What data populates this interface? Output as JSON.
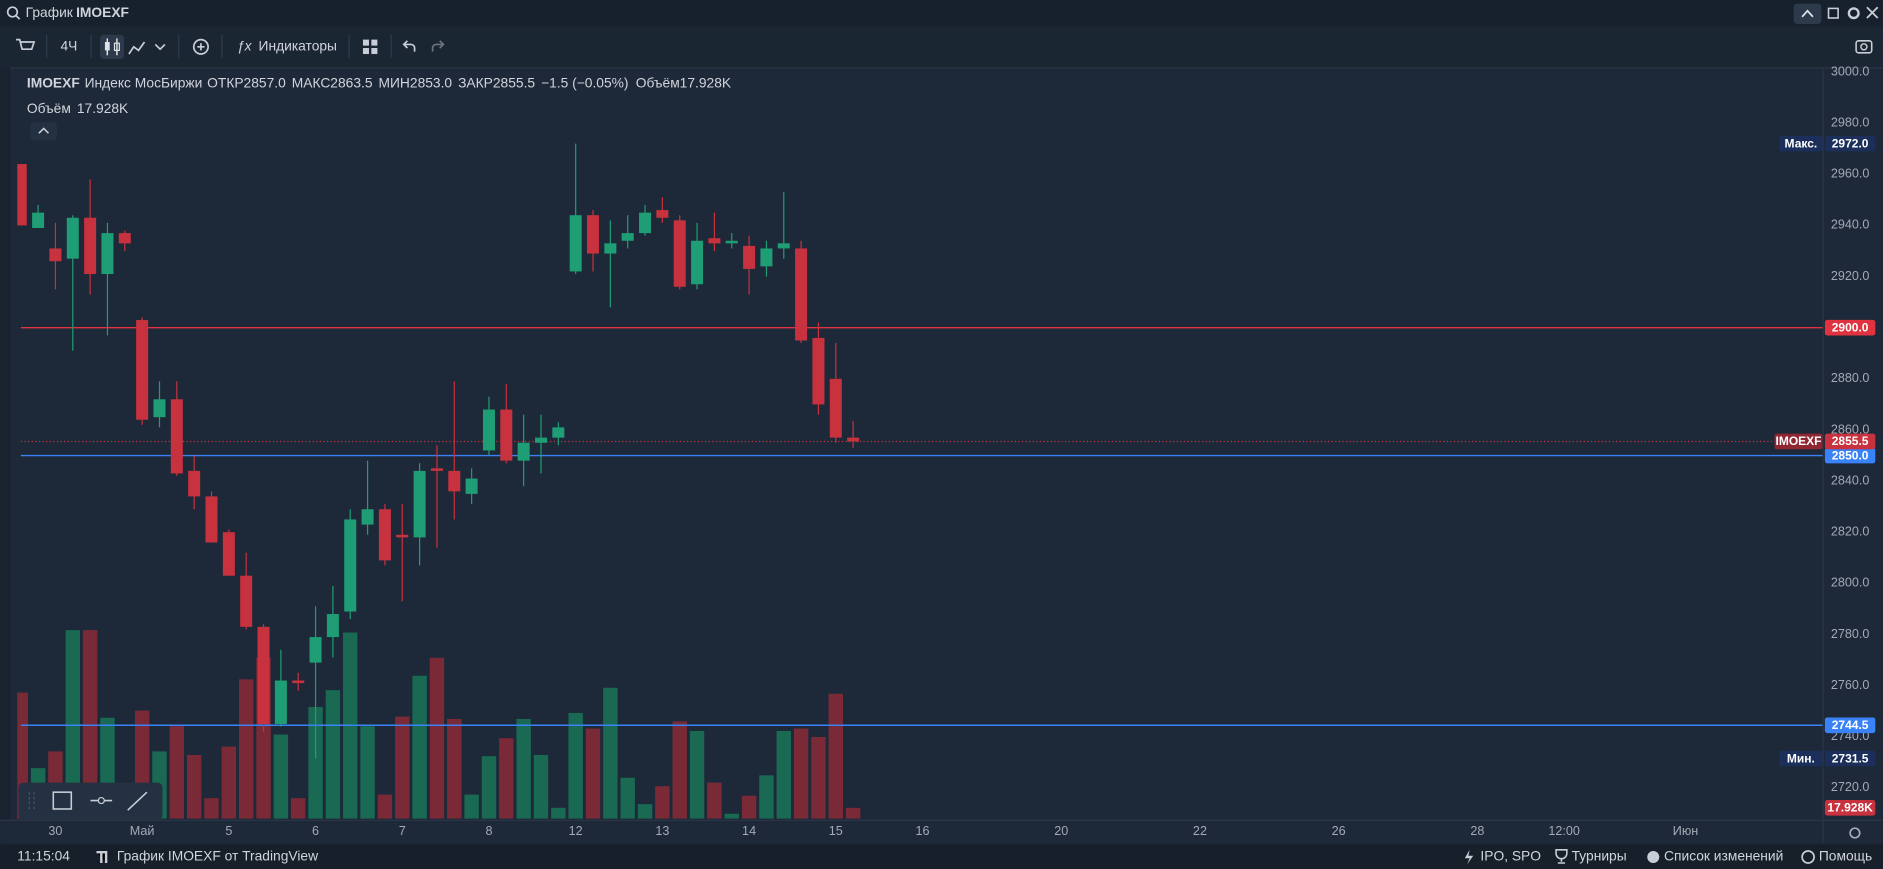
{
  "window": {
    "search_label": "График",
    "symbol": "IMOEXF"
  },
  "toolbar": {
    "interval": "4Ч",
    "indicators": "Индикаторы"
  },
  "legend": {
    "symbol": "IMOEXF",
    "name": "Индекс МосБиржи",
    "open_label": "ОТКР",
    "open": "2857.0",
    "high_label": "МАКС",
    "high": "2863.5",
    "low_label": "МИН",
    "low": "2853.0",
    "close_label": "ЗАКР",
    "close": "2855.5",
    "change": "−1.5 (−0.05%)",
    "volume_label": "Объём",
    "volume": "17.928K",
    "volume_pane_label": "Объём",
    "volume_pane_value": "17.928K"
  },
  "chart_data": {
    "type": "candlestick",
    "xlim": [
      -0.2,
      103.9
    ],
    "xticks": [
      {
        "value": 2,
        "label": "30"
      },
      {
        "value": 7,
        "label": "Май"
      },
      {
        "value": 12,
        "label": "5"
      },
      {
        "value": 17,
        "label": "6"
      },
      {
        "value": 22,
        "label": "7"
      },
      {
        "value": 27,
        "label": "8"
      },
      {
        "value": 32,
        "label": "12"
      },
      {
        "value": 37,
        "label": "13"
      },
      {
        "value": 42,
        "label": "14"
      },
      {
        "value": 47,
        "label": "15"
      },
      {
        "value": 52,
        "label": "16"
      },
      {
        "value": 60,
        "label": "20"
      },
      {
        "value": 68,
        "label": "22"
      },
      {
        "value": 76,
        "label": "26"
      },
      {
        "value": 84,
        "label": "28"
      },
      {
        "value": 89,
        "label": "12:00"
      },
      {
        "value": 96,
        "label": "Июн"
      }
    ],
    "ylim": [
      2708,
      3004.7
    ],
    "yticks": [
      {
        "value": 2720,
        "label": "2720.0"
      },
      {
        "value": 2740,
        "label": "2740.0"
      },
      {
        "value": 2760,
        "label": "2760.0"
      },
      {
        "value": 2780,
        "label": "2780.0"
      },
      {
        "value": 2800,
        "label": "2800.0"
      },
      {
        "value": 2820,
        "label": "2820.0"
      },
      {
        "value": 2840,
        "label": "2840.0"
      },
      {
        "value": 2860,
        "label": "2860.0"
      },
      {
        "value": 2880,
        "label": "2880.0"
      },
      {
        "value": 2900,
        "label": "2900.0"
      },
      {
        "value": 2920,
        "label": "2920.0"
      },
      {
        "value": 2940,
        "label": "2940.0"
      },
      {
        "value": 2960,
        "label": "2960.0"
      },
      {
        "value": 2980,
        "label": "2980.0"
      },
      {
        "value": 3000,
        "label": "3000.0"
      }
    ],
    "series": [
      {
        "name": "IMOEXF",
        "open": [
          2964,
          2939,
          2931,
          2927,
          2943,
          2921,
          2937,
          2903,
          2865,
          2872,
          2844,
          2834,
          2820,
          2803,
          2783,
          2745,
          2762,
          2769,
          2779,
          2789,
          2823,
          2829,
          2819,
          2818,
          2845,
          2844,
          2835,
          2852,
          2868,
          2848,
          2855,
          2857,
          2922,
          2944,
          2929,
          2934,
          2937,
          2946,
          2942,
          2917,
          2935,
          2933,
          2932,
          2924,
          2931,
          2931,
          2896,
          2880,
          2857
        ],
        "high": [
          2964,
          2948,
          2941,
          2944,
          2958,
          2941,
          2938,
          2904,
          2879,
          2879,
          2850,
          2836,
          2821,
          2812,
          2784,
          2774,
          2765,
          2791,
          2799,
          2829,
          2848,
          2831,
          2831,
          2847,
          2854,
          2879,
          2845,
          2873,
          2878,
          2866,
          2866,
          2863,
          2972,
          2946,
          2942,
          2944,
          2948,
          2951,
          2944,
          2941,
          2945,
          2937,
          2936,
          2934,
          2953,
          2934,
          2902,
          2894,
          2863.5
        ],
        "low": [
          2940,
          2939,
          2915,
          2891,
          2913,
          2897,
          2930,
          2862,
          2861,
          2842,
          2829,
          2816,
          2803,
          2782,
          2742,
          2744,
          2758,
          2731.5,
          2771,
          2786,
          2819,
          2807,
          2793,
          2807,
          2814,
          2825,
          2831,
          2850,
          2847,
          2838,
          2843,
          2854,
          2921,
          2922,
          2908,
          2931,
          2936,
          2941,
          2915,
          2915,
          2930,
          2931,
          2913,
          2920,
          2927,
          2894,
          2866,
          2855,
          2853
        ],
        "close": [
          2940,
          2945,
          2926,
          2943,
          2921,
          2937,
          2933,
          2864,
          2872,
          2843,
          2834,
          2816,
          2803,
          2783,
          2745,
          2762,
          2761,
          2779,
          2788,
          2825,
          2829,
          2809,
          2818,
          2844,
          2844,
          2836,
          2841,
          2868,
          2848,
          2855,
          2857,
          2861,
          2944,
          2929,
          2933,
          2937,
          2945,
          2943,
          2916,
          2934,
          2933,
          2934,
          2923,
          2931,
          2933,
          2895,
          2870,
          2857,
          2855.5
        ],
        "volume": [
          210000,
          84000,
          112000,
          314000,
          314000,
          168000,
          44000,
          180000,
          112000,
          154000,
          106000,
          34000,
          120000,
          232000,
          268000,
          140000,
          34000,
          186000,
          214000,
          310000,
          154000,
          40000,
          170000,
          238000,
          268000,
          166000,
          40000,
          104000,
          134000,
          166000,
          106000,
          18000,
          176000,
          150000,
          218000,
          68000,
          24000,
          54000,
          162000,
          146000,
          60000,
          8000,
          38000,
          72000,
          146000,
          150000,
          136000,
          208000,
          17928
        ]
      }
    ],
    "colors": {
      "up": "#1f9e75",
      "down": "#c8323f",
      "volume_up": "#1a6a53",
      "volume_down": "#7a2a37"
    },
    "levels": [
      {
        "value": 2900,
        "label": "2900.0",
        "color": "#e0323f"
      },
      {
        "value": 2850,
        "label": "2850.0",
        "color": "#3a82f7"
      },
      {
        "value": 2744.5,
        "label": "2744.5",
        "color": "#3a82f7"
      }
    ],
    "markers": [
      {
        "name": "Макс.",
        "value": 2972,
        "label": "2972.0"
      },
      {
        "name": "Мин.",
        "value": 2731.5,
        "label": "2731.5"
      }
    ],
    "last_price": {
      "value": 2855.5,
      "label": "2855.5"
    },
    "last_volume_label": "17.928K"
  },
  "status_bar": {
    "time": "11:15:04",
    "credit": "График IMOEXF от TradingView",
    "links": [
      "IPO, SPO",
      "Турниры",
      "Список изменений",
      "Помощь"
    ]
  }
}
